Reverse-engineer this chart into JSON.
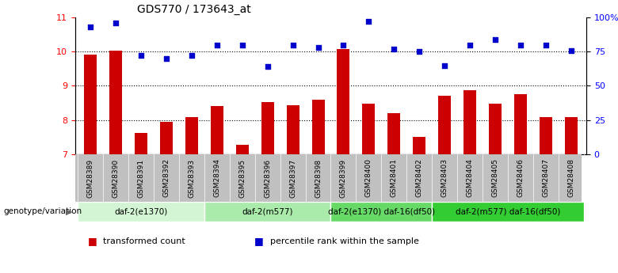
{
  "title": "GDS770 / 173643_at",
  "samples": [
    "GSM28389",
    "GSM28390",
    "GSM28391",
    "GSM28392",
    "GSM28393",
    "GSM28394",
    "GSM28395",
    "GSM28396",
    "GSM28397",
    "GSM28398",
    "GSM28399",
    "GSM28400",
    "GSM28401",
    "GSM28402",
    "GSM28403",
    "GSM28404",
    "GSM28405",
    "GSM28406",
    "GSM28407",
    "GSM28408"
  ],
  "bar_values": [
    9.92,
    10.02,
    7.62,
    7.95,
    8.08,
    8.42,
    7.28,
    8.52,
    8.43,
    8.6,
    10.07,
    8.48,
    8.2,
    7.5,
    8.72,
    8.87,
    8.48,
    8.75,
    8.08,
    8.08
  ],
  "percentile": [
    93,
    96,
    72,
    70,
    72,
    80,
    80,
    64,
    80,
    78,
    80,
    97,
    77,
    75,
    65,
    80,
    84,
    80,
    80,
    76
  ],
  "ylim_left": [
    7,
    11
  ],
  "ylim_right": [
    0,
    100
  ],
  "yticks_left": [
    7,
    8,
    9,
    10,
    11
  ],
  "yticks_right": [
    0,
    25,
    50,
    75,
    100
  ],
  "ytick_labels_right": [
    "0",
    "25",
    "50",
    "75",
    "100%"
  ],
  "bar_color": "#cc0000",
  "dot_color": "#0000cc",
  "groups": [
    {
      "label": "daf-2(e1370)",
      "start": 0,
      "end": 4,
      "color": "#d4f5d4"
    },
    {
      "label": "daf-2(m577)",
      "start": 5,
      "end": 9,
      "color": "#aaeaaa"
    },
    {
      "label": "daf-2(e1370) daf-16(df50)",
      "start": 10,
      "end": 13,
      "color": "#66d966"
    },
    {
      "label": "daf-2(m577) daf-16(df50)",
      "start": 14,
      "end": 19,
      "color": "#33cc33"
    }
  ],
  "genotype_label": "genotype/variation",
  "legend_items": [
    {
      "color": "#cc0000",
      "label": "transformed count"
    },
    {
      "color": "#0000cc",
      "label": "percentile rank within the sample"
    }
  ],
  "sample_box_color": "#c0c0c0",
  "title_fontsize": 10,
  "bar_width": 0.5
}
